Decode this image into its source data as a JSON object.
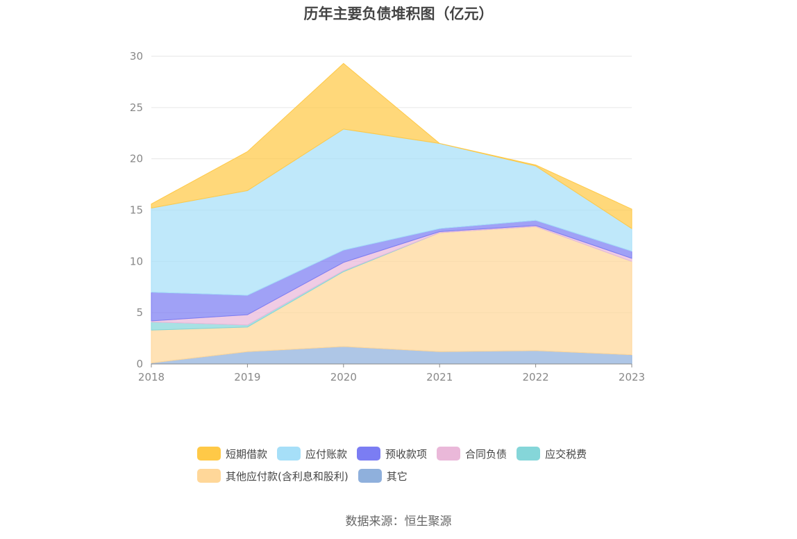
{
  "chart_data": {
    "type": "area",
    "stacked": true,
    "title": "历年主要负债堆积图（亿元）",
    "xlabel": "",
    "ylabel": "",
    "x": [
      "2018",
      "2019",
      "2020",
      "2021",
      "2022",
      "2023"
    ],
    "ylim": [
      0,
      30
    ],
    "yticks": [
      "0",
      "5",
      "10",
      "15",
      "20",
      "25",
      "30"
    ],
    "grid": true,
    "legend_position": "bottom",
    "series": [
      {
        "name": "其它",
        "color": "#8fb0dc",
        "values": [
          0.1,
          1.2,
          1.7,
          1.2,
          1.3,
          0.9
        ]
      },
      {
        "name": "其他应付款(含利息和股利)",
        "color": "#ffd799",
        "values": [
          3.2,
          2.4,
          7.3,
          11.6,
          12.1,
          9.1
        ]
      },
      {
        "name": "应交税费",
        "color": "#85d6d9",
        "values": [
          0.8,
          0.2,
          0.1,
          0.0,
          0.0,
          0.0
        ]
      },
      {
        "name": "合同负债",
        "color": "#eab8d9",
        "values": [
          0.1,
          1.0,
          0.8,
          0.1,
          0.1,
          0.3
        ]
      },
      {
        "name": "预收款项",
        "color": "#7b7df3",
        "values": [
          2.8,
          1.9,
          1.2,
          0.3,
          0.5,
          0.7
        ]
      },
      {
        "name": "应付账款",
        "color": "#a6dff8",
        "values": [
          8.2,
          10.2,
          11.8,
          8.3,
          5.3,
          2.2
        ]
      },
      {
        "name": "短期借款",
        "color": "#ffc947",
        "values": [
          0.4,
          3.8,
          6.4,
          0.0,
          0.1,
          1.9
        ]
      }
    ],
    "legend_order": [
      "短期借款",
      "应付账款",
      "预收款项",
      "合同负债",
      "应交税费",
      "其他应付款(含利息和股利)",
      "其它"
    ]
  },
  "source_note": "数据来源：恒生聚源"
}
